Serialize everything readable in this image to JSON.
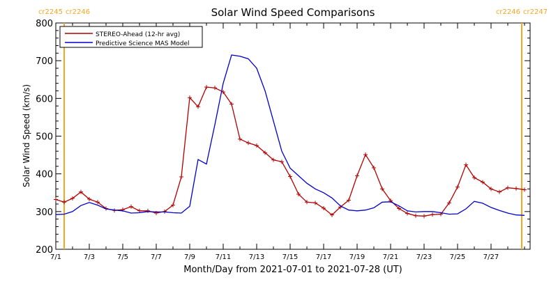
{
  "chart_data": {
    "type": "line",
    "title": "Solar Wind Speed Comparisons",
    "xlabel": "Month/Day from 2021-07-01 to 2021-07-28 (UT)",
    "ylabel": "Solar Wind Speed (km/s)",
    "ylim": [
      200,
      800
    ],
    "xlim": [
      "2021-07-01",
      "2021-07-29T08:00"
    ],
    "y_ticks": [
      200,
      300,
      400,
      500,
      600,
      700,
      800
    ],
    "x_ticks": [
      {
        "date": "2021-07-01",
        "label": "7/1"
      },
      {
        "date": "2021-07-03",
        "label": "7/3"
      },
      {
        "date": "2021-07-05",
        "label": "7/5"
      },
      {
        "date": "2021-07-07",
        "label": "7/7"
      },
      {
        "date": "2021-07-09",
        "label": "7/9"
      },
      {
        "date": "2021-07-11",
        "label": "7/11"
      },
      {
        "date": "2021-07-13",
        "label": "7/13"
      },
      {
        "date": "2021-07-15",
        "label": "7/15"
      },
      {
        "date": "2021-07-17",
        "label": "7/17"
      },
      {
        "date": "2021-07-19",
        "label": "7/19"
      },
      {
        "date": "2021-07-21",
        "label": "7/21"
      },
      {
        "date": "2021-07-23",
        "label": "7/23"
      },
      {
        "date": "2021-07-25",
        "label": "7/25"
      },
      {
        "date": "2021-07-27",
        "label": "7/27"
      }
    ],
    "grid": false,
    "legend_position": "top-left",
    "carrington_markers": [
      {
        "date": "2021-07-01T12:00",
        "label_left": "cr2245",
        "label_right": "cr2246",
        "color": "#f5a623"
      },
      {
        "date": "2021-07-28T20:00",
        "label_left": "cr2246",
        "label_right": "cr2247",
        "color": "#f5a623"
      }
    ],
    "series": [
      {
        "name": "STEREO-Ahead (12-hr avg)",
        "color": "#b30000",
        "markers": true,
        "points": [
          [
            "2021-07-01T00:00",
            332
          ],
          [
            "2021-07-01T12:00",
            325
          ],
          [
            "2021-07-02T00:00",
            335
          ],
          [
            "2021-07-02T12:00",
            352
          ],
          [
            "2021-07-03T00:00",
            333
          ],
          [
            "2021-07-03T12:00",
            325
          ],
          [
            "2021-07-04T00:00",
            308
          ],
          [
            "2021-07-04T12:00",
            303
          ],
          [
            "2021-07-05T00:00",
            305
          ],
          [
            "2021-07-05T12:00",
            313
          ],
          [
            "2021-07-06T00:00",
            302
          ],
          [
            "2021-07-06T12:00",
            302
          ],
          [
            "2021-07-07T00:00",
            296
          ],
          [
            "2021-07-07T12:00",
            300
          ],
          [
            "2021-07-08T00:00",
            317
          ],
          [
            "2021-07-08T12:00",
            392
          ],
          [
            "2021-07-09T00:00",
            602
          ],
          [
            "2021-07-09T12:00",
            578
          ],
          [
            "2021-07-10T00:00",
            630
          ],
          [
            "2021-07-10T12:00",
            628
          ],
          [
            "2021-07-11T00:00",
            617
          ],
          [
            "2021-07-11T12:00",
            585
          ],
          [
            "2021-07-12T00:00",
            492
          ],
          [
            "2021-07-12T12:00",
            482
          ],
          [
            "2021-07-13T00:00",
            475
          ],
          [
            "2021-07-13T12:00",
            456
          ],
          [
            "2021-07-14T00:00",
            437
          ],
          [
            "2021-07-14T12:00",
            432
          ],
          [
            "2021-07-15T00:00",
            393
          ],
          [
            "2021-07-15T12:00",
            346
          ],
          [
            "2021-07-16T00:00",
            325
          ],
          [
            "2021-07-16T12:00",
            323
          ],
          [
            "2021-07-17T00:00",
            309
          ],
          [
            "2021-07-17T12:00",
            291
          ],
          [
            "2021-07-18T00:00",
            312
          ],
          [
            "2021-07-18T12:00",
            330
          ],
          [
            "2021-07-19T00:00",
            395
          ],
          [
            "2021-07-19T12:00",
            451
          ],
          [
            "2021-07-20T00:00",
            416
          ],
          [
            "2021-07-20T12:00",
            360
          ],
          [
            "2021-07-21T00:00",
            329
          ],
          [
            "2021-07-21T12:00",
            308
          ],
          [
            "2021-07-22T00:00",
            295
          ],
          [
            "2021-07-22T12:00",
            289
          ],
          [
            "2021-07-23T00:00",
            288
          ],
          [
            "2021-07-23T12:00",
            292
          ],
          [
            "2021-07-24T00:00",
            293
          ],
          [
            "2021-07-24T12:00",
            323
          ],
          [
            "2021-07-25T00:00",
            365
          ],
          [
            "2021-07-25T12:00",
            424
          ],
          [
            "2021-07-26T00:00",
            390
          ],
          [
            "2021-07-26T12:00",
            378
          ],
          [
            "2021-07-27T00:00",
            360
          ],
          [
            "2021-07-27T12:00",
            352
          ],
          [
            "2021-07-28T00:00",
            363
          ],
          [
            "2021-07-28T12:00",
            361
          ],
          [
            "2021-07-29T00:00",
            358
          ]
        ]
      },
      {
        "name": "Predictive Science MAS Model",
        "color": "#0000cc",
        "markers": false,
        "points": [
          [
            "2021-07-01T00:00",
            292
          ],
          [
            "2021-07-01T12:00",
            293
          ],
          [
            "2021-07-02T00:00",
            300
          ],
          [
            "2021-07-02T12:00",
            316
          ],
          [
            "2021-07-03T00:00",
            324
          ],
          [
            "2021-07-03T12:00",
            317
          ],
          [
            "2021-07-04T00:00",
            307
          ],
          [
            "2021-07-04T12:00",
            304
          ],
          [
            "2021-07-05T00:00",
            302
          ],
          [
            "2021-07-05T12:00",
            296
          ],
          [
            "2021-07-06T00:00",
            297
          ],
          [
            "2021-07-06T12:00",
            300
          ],
          [
            "2021-07-07T00:00",
            299
          ],
          [
            "2021-07-07T12:00",
            299
          ],
          [
            "2021-07-08T00:00",
            297
          ],
          [
            "2021-07-08T12:00",
            296
          ],
          [
            "2021-07-09T00:00",
            314
          ],
          [
            "2021-07-09T12:00",
            438
          ],
          [
            "2021-07-10T00:00",
            426
          ],
          [
            "2021-07-10T12:00",
            530
          ],
          [
            "2021-07-11T00:00",
            640
          ],
          [
            "2021-07-11T12:00",
            715
          ],
          [
            "2021-07-12T00:00",
            712
          ],
          [
            "2021-07-12T12:00",
            705
          ],
          [
            "2021-07-13T00:00",
            680
          ],
          [
            "2021-07-13T12:00",
            620
          ],
          [
            "2021-07-14T00:00",
            540
          ],
          [
            "2021-07-14T12:00",
            460
          ],
          [
            "2021-07-15T00:00",
            415
          ],
          [
            "2021-07-15T12:00",
            395
          ],
          [
            "2021-07-16T00:00",
            375
          ],
          [
            "2021-07-16T12:00",
            360
          ],
          [
            "2021-07-17T00:00",
            350
          ],
          [
            "2021-07-17T12:00",
            336
          ],
          [
            "2021-07-18T00:00",
            315
          ],
          [
            "2021-07-18T12:00",
            304
          ],
          [
            "2021-07-19T00:00",
            302
          ],
          [
            "2021-07-19T12:00",
            304
          ],
          [
            "2021-07-20T00:00",
            310
          ],
          [
            "2021-07-20T12:00",
            325
          ],
          [
            "2021-07-21T00:00",
            326
          ],
          [
            "2021-07-21T12:00",
            315
          ],
          [
            "2021-07-22T00:00",
            302
          ],
          [
            "2021-07-22T12:00",
            299
          ],
          [
            "2021-07-23T00:00",
            300
          ],
          [
            "2021-07-23T12:00",
            300
          ],
          [
            "2021-07-24T00:00",
            297
          ],
          [
            "2021-07-24T12:00",
            293
          ],
          [
            "2021-07-25T00:00",
            294
          ],
          [
            "2021-07-25T12:00",
            307
          ],
          [
            "2021-07-26T00:00",
            327
          ],
          [
            "2021-07-26T12:00",
            322
          ],
          [
            "2021-07-27T00:00",
            311
          ],
          [
            "2021-07-27T12:00",
            303
          ],
          [
            "2021-07-28T00:00",
            296
          ],
          [
            "2021-07-28T12:00",
            291
          ],
          [
            "2021-07-29T00:00",
            290
          ]
        ]
      }
    ]
  }
}
